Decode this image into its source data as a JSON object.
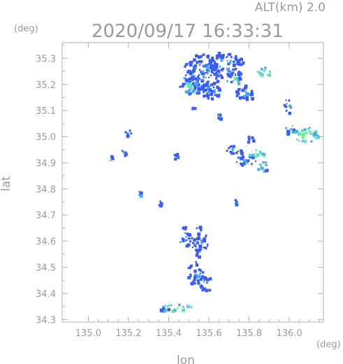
{
  "header": {
    "altitude_label": "ALT(km)  2.0",
    "timestamp": "2020/09/17 16:33:31"
  },
  "chart_data": {
    "type": "heatmap",
    "title": "2020/09/17 16:33:31",
    "subtitle": "ALT(km)  2.0",
    "xlabel": "lon",
    "ylabel": "lat",
    "x_unit": "(deg)",
    "y_unit": "(deg)",
    "xlim": [
      134.87,
      136.17
    ],
    "ylim": [
      34.29,
      35.36
    ],
    "x_ticks": [
      "135.0",
      "135.2",
      "135.4",
      "135.6",
      "135.8",
      "136.0"
    ],
    "y_ticks": [
      "34.3",
      "34.4",
      "34.5",
      "34.6",
      "34.7",
      "34.8",
      "34.9",
      "35.0",
      "35.1",
      "35.2",
      "35.3"
    ],
    "grid": false,
    "colors": {
      "low": "#3a5cf0",
      "mid": "#4aa8f5",
      "high": "#5fe0b8",
      "peak": "#7ef08a",
      "axis": "#b0b0b0",
      "text": "#9a9a9a"
    },
    "echo_regions": [
      {
        "lon": 135.56,
        "lat": 35.25,
        "rlon": 0.09,
        "rlat": 0.07,
        "level": "low"
      },
      {
        "lon": 135.68,
        "lat": 35.28,
        "rlon": 0.09,
        "rlat": 0.05,
        "level": "low"
      },
      {
        "lon": 135.5,
        "lat": 35.2,
        "rlon": 0.05,
        "rlat": 0.04,
        "level": "mid"
      },
      {
        "lon": 135.6,
        "lat": 35.18,
        "rlon": 0.06,
        "rlat": 0.03,
        "level": "low"
      },
      {
        "lon": 135.72,
        "lat": 35.23,
        "rlon": 0.04,
        "rlat": 0.03,
        "level": "mid"
      },
      {
        "lon": 135.78,
        "lat": 35.17,
        "rlon": 0.05,
        "rlat": 0.03,
        "level": "low"
      },
      {
        "lon": 135.86,
        "lat": 35.25,
        "rlon": 0.04,
        "rlat": 0.02,
        "level": "high"
      },
      {
        "lon": 136.08,
        "lat": 35.01,
        "rlon": 0.06,
        "rlat": 0.03,
        "level": "high"
      },
      {
        "lon": 136.0,
        "lat": 35.03,
        "rlon": 0.03,
        "rlat": 0.02,
        "level": "mid"
      },
      {
        "lon": 135.99,
        "lat": 35.12,
        "rlon": 0.02,
        "rlat": 0.03,
        "level": "low"
      },
      {
        "lon": 135.83,
        "lat": 34.94,
        "rlon": 0.04,
        "rlat": 0.02,
        "level": "high"
      },
      {
        "lon": 135.72,
        "lat": 34.95,
        "rlon": 0.04,
        "rlat": 0.02,
        "level": "low"
      },
      {
        "lon": 135.78,
        "lat": 34.91,
        "rlon": 0.05,
        "rlat": 0.02,
        "level": "low"
      },
      {
        "lon": 135.86,
        "lat": 34.89,
        "rlon": 0.03,
        "rlat": 0.02,
        "level": "mid"
      },
      {
        "lon": 135.8,
        "lat": 34.99,
        "rlon": 0.02,
        "rlat": 0.015,
        "level": "low"
      },
      {
        "lon": 135.48,
        "lat": 34.62,
        "rlon": 0.03,
        "rlat": 0.04,
        "level": "low"
      },
      {
        "lon": 135.55,
        "lat": 34.6,
        "rlon": 0.04,
        "rlat": 0.06,
        "level": "low"
      },
      {
        "lon": 135.53,
        "lat": 34.48,
        "rlon": 0.04,
        "rlat": 0.05,
        "level": "low"
      },
      {
        "lon": 135.58,
        "lat": 34.44,
        "rlon": 0.03,
        "rlat": 0.03,
        "level": "low"
      },
      {
        "lon": 135.43,
        "lat": 34.35,
        "rlon": 0.09,
        "rlat": 0.012,
        "level": "high"
      },
      {
        "lon": 135.37,
        "lat": 34.34,
        "rlon": 0.03,
        "rlat": 0.008,
        "level": "low"
      },
      {
        "lon": 135.2,
        "lat": 35.02,
        "rlon": 0.02,
        "rlat": 0.015,
        "level": "low"
      },
      {
        "lon": 135.17,
        "lat": 34.94,
        "rlon": 0.015,
        "rlat": 0.012,
        "level": "low"
      },
      {
        "lon": 135.11,
        "lat": 34.92,
        "rlon": 0.015,
        "rlat": 0.012,
        "level": "low"
      },
      {
        "lon": 135.43,
        "lat": 34.93,
        "rlon": 0.012,
        "rlat": 0.012,
        "level": "low"
      },
      {
        "lon": 135.25,
        "lat": 34.78,
        "rlon": 0.012,
        "rlat": 0.012,
        "level": "low"
      },
      {
        "lon": 135.73,
        "lat": 34.75,
        "rlon": 0.012,
        "rlat": 0.012,
        "level": "low"
      },
      {
        "lon": 135.35,
        "lat": 34.75,
        "rlon": 0.01,
        "rlat": 0.01,
        "level": "low"
      },
      {
        "lon": 135.52,
        "lat": 35.11,
        "rlon": 0.015,
        "rlat": 0.012,
        "level": "low"
      },
      {
        "lon": 135.65,
        "lat": 35.08,
        "rlon": 0.012,
        "rlat": 0.012,
        "level": "low"
      }
    ]
  }
}
